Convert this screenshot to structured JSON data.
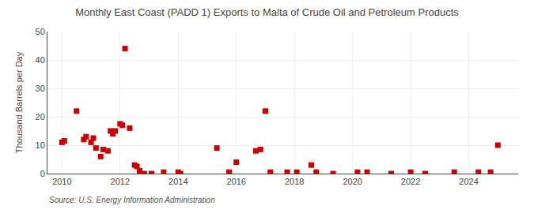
{
  "chart_data": {
    "type": "scatter",
    "title": "Monthly East Coast (PADD 1) Exports to Malta of Crude Oil and Petroleum Products",
    "ylabel": "Thousand Barrels per Day",
    "annotations": [
      "Source: U.S. Energy Information Administration"
    ],
    "color": "#cc0000",
    "marker": "square",
    "grid": true,
    "xlim": [
      2009.5,
      2025.7
    ],
    "xticks": [
      2010,
      2012,
      2014,
      2016,
      2018,
      2020,
      2022,
      2024
    ],
    "ylim": [
      0,
      50
    ],
    "yticks": [
      0,
      10,
      20,
      30,
      40,
      50
    ],
    "x": [
      2010.0,
      2010.08,
      2010.5,
      2010.75,
      2010.83,
      2011.0,
      2011.08,
      2011.17,
      2011.33,
      2011.42,
      2011.58,
      2011.67,
      2011.75,
      2011.83,
      2012.0,
      2012.08,
      2012.17,
      2012.33,
      2012.5,
      2012.58,
      2012.67,
      2012.83,
      2013.08,
      2013.5,
      2014.0,
      2014.08,
      2015.33,
      2015.75,
      2016.0,
      2016.67,
      2016.83,
      2017.0,
      2017.17,
      2017.75,
      2018.08,
      2018.58,
      2018.75,
      2019.33,
      2020.17,
      2020.5,
      2021.33,
      2022.0,
      2022.5,
      2023.5,
      2024.33,
      2024.75,
      2025.0
    ],
    "values": [
      11.0,
      11.5,
      22.0,
      12.0,
      13.0,
      11.0,
      12.5,
      9.0,
      6.0,
      8.5,
      8.0,
      15.0,
      14.0,
      15.0,
      17.5,
      17.0,
      44.0,
      16.0,
      3.0,
      2.5,
      1.0,
      0.0,
      0.0,
      0.5,
      0.5,
      0.0,
      9.0,
      0.5,
      4.0,
      8.0,
      8.5,
      22.0,
      0.5,
      0.5,
      0.5,
      3.0,
      0.5,
      0.0,
      0.5,
      0.5,
      0.0,
      0.5,
      0.0,
      0.5,
      0.5,
      0.5,
      10.0
    ]
  }
}
